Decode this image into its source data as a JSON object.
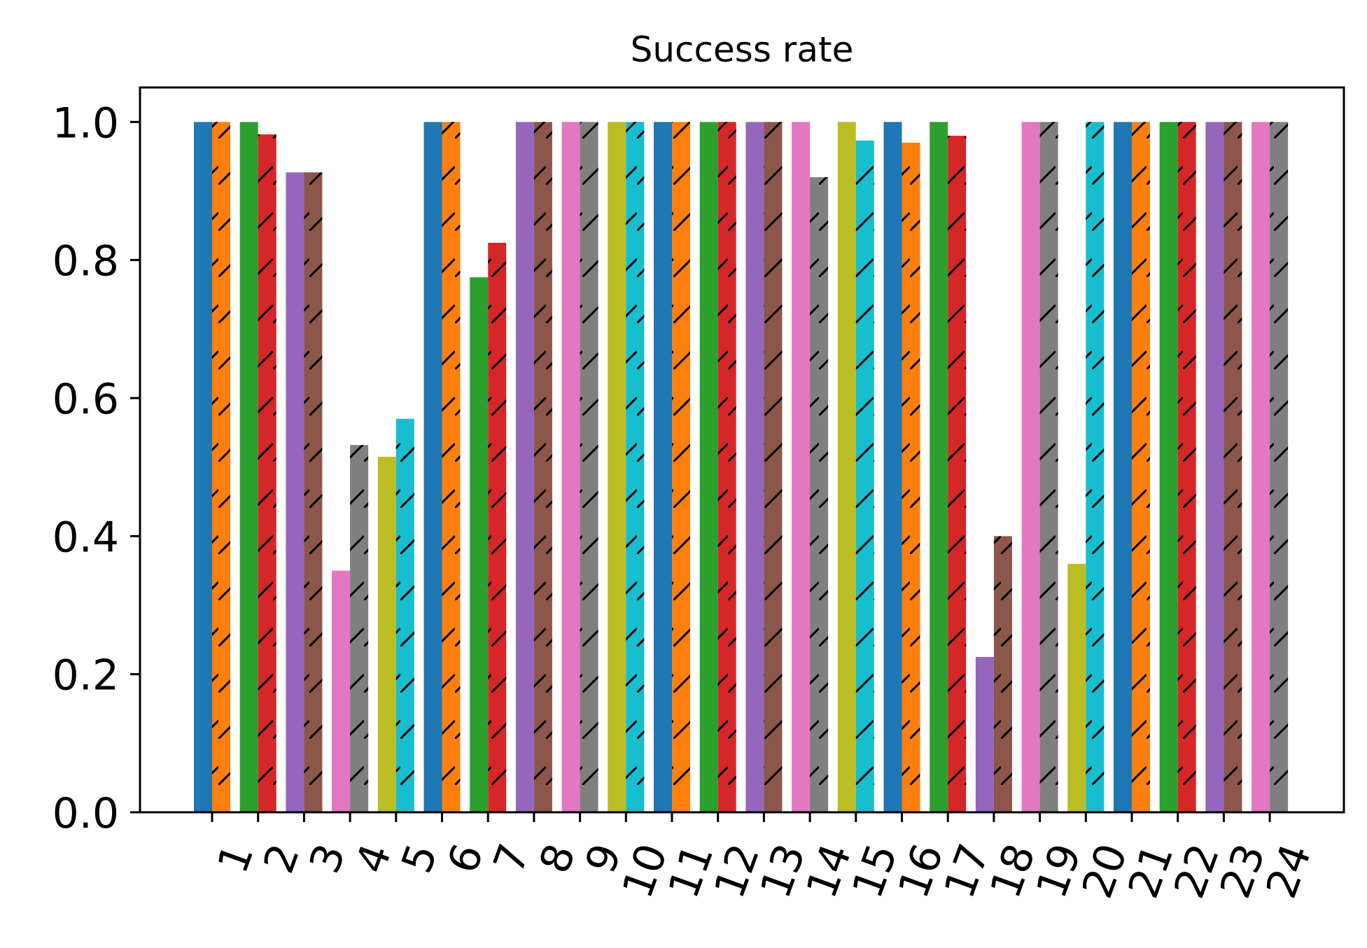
{
  "chart_data": {
    "type": "bar",
    "title": "Success rate",
    "xlabel": "",
    "ylabel": "",
    "ylim": [
      0,
      1.05
    ],
    "yticks": [
      "0.0",
      "0.2",
      "0.4",
      "0.6",
      "0.8",
      "1.0"
    ],
    "categories": [
      "1",
      "2",
      "3",
      "4",
      "5",
      "6",
      "7",
      "8",
      "9",
      "10",
      "11",
      "12",
      "13",
      "14",
      "15",
      "16",
      "17",
      "18",
      "19",
      "20",
      "21",
      "22",
      "23",
      "24"
    ],
    "series": [
      {
        "values": [
          1.0,
          1.0,
          0.927,
          0.35,
          0.515,
          1.0,
          0.775,
          1.0,
          1.0,
          1.0,
          1.0,
          1.0,
          1.0,
          1.0,
          1.0,
          1.0,
          1.0,
          0.225,
          1.0,
          0.36,
          1.0,
          1.0,
          1.0,
          1.0
        ],
        "hatch": "none"
      },
      {
        "values": [
          1.0,
          0.982,
          0.927,
          0.532,
          0.57,
          1.0,
          0.825,
          1.0,
          1.0,
          1.0,
          1.0,
          1.0,
          1.0,
          0.92,
          0.973,
          0.97,
          0.98,
          0.4,
          1.0,
          1.0,
          1.0,
          1.0,
          1.0,
          1.0
        ],
        "hatch": "diagonal"
      }
    ],
    "palette": [
      "#1f77b4",
      "#ff7f0e",
      "#2ca02c",
      "#d62728",
      "#9467bd",
      "#8c564b",
      "#e377c2",
      "#7f7f7f",
      "#bcbd22",
      "#17becf"
    ],
    "grid": false,
    "legend": "none"
  }
}
